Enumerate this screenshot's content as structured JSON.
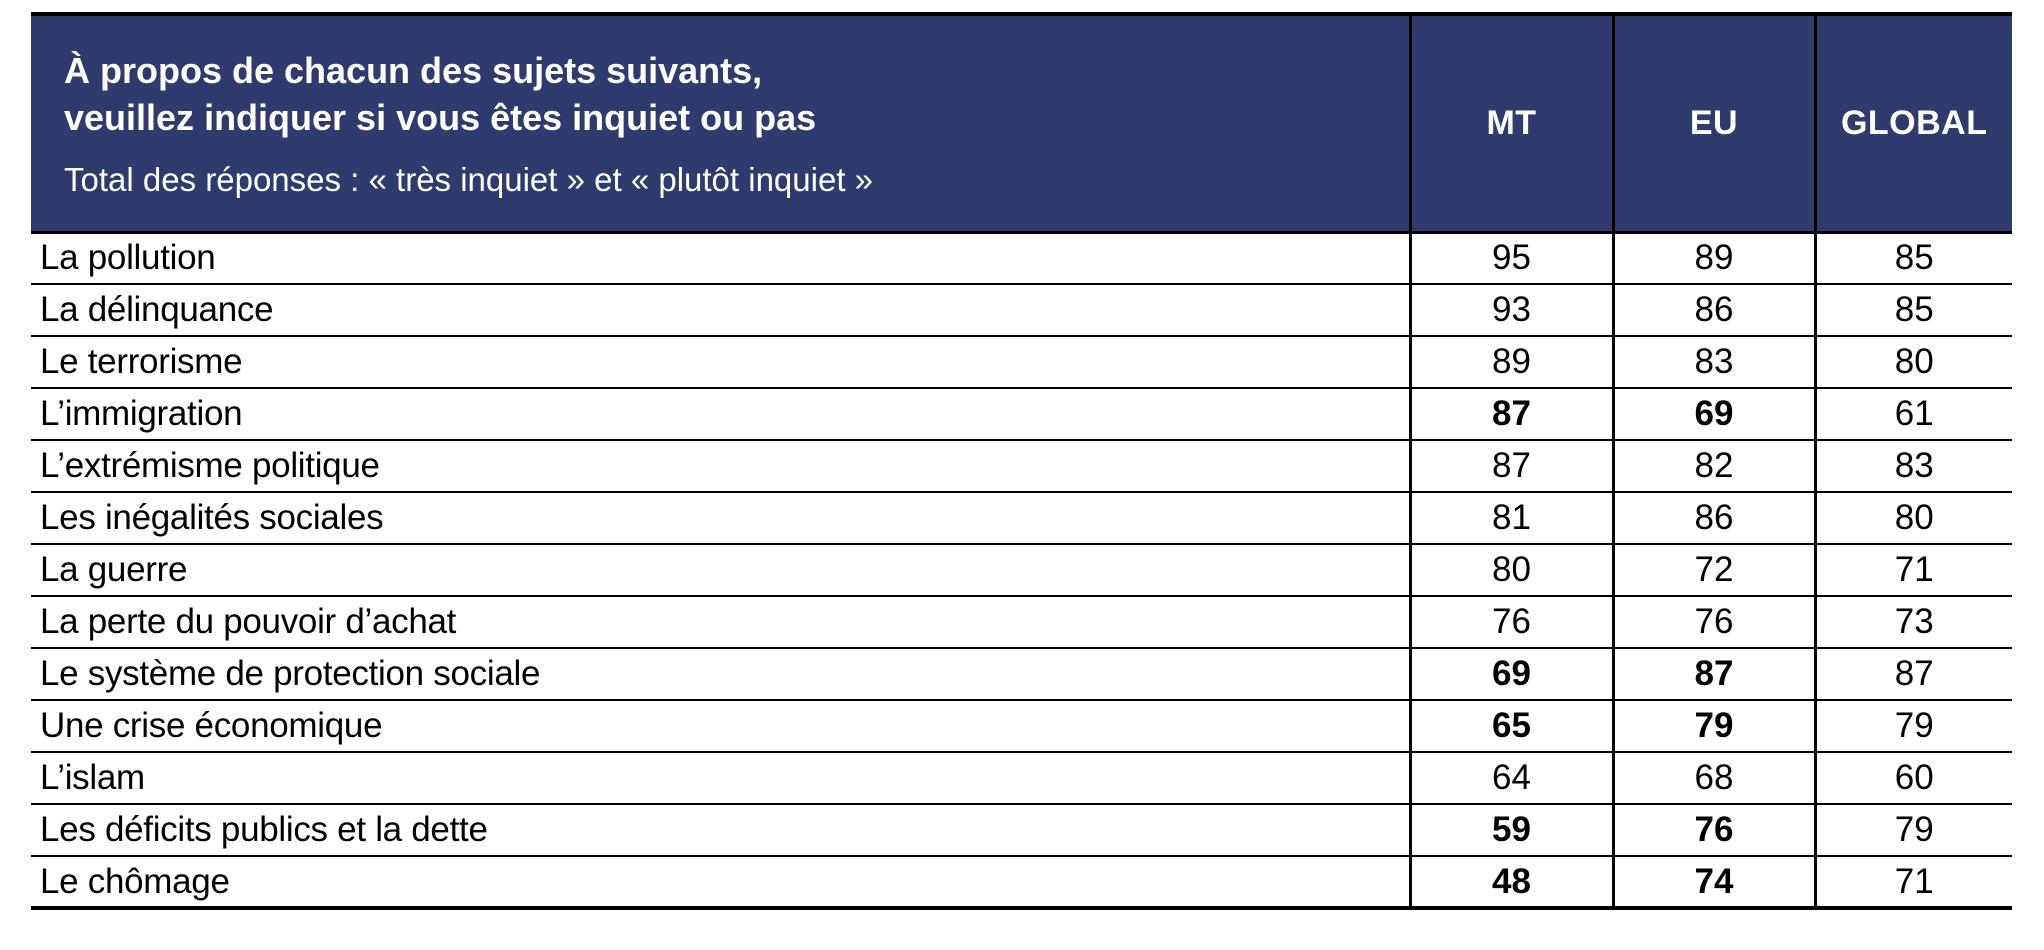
{
  "colors": {
    "header_bg": "#2f3b6d",
    "border": "#000000",
    "header_text": "#ffffff",
    "body_text": "#000000"
  },
  "header": {
    "question_line1": "À propos de chacun des sujets suivants,",
    "question_line2": "veuillez indiquer si vous êtes inquiet ou pas",
    "subtitle": "Total des réponses : « très inquiet » et « plutôt inquiet »",
    "columns": [
      "MT",
      "EU",
      "GLOBAL"
    ]
  },
  "rows": [
    {
      "label": "La pollution",
      "values": [
        95,
        89,
        85
      ],
      "bold": [
        false,
        false,
        false
      ]
    },
    {
      "label": "La délinquance",
      "values": [
        93,
        86,
        85
      ],
      "bold": [
        false,
        false,
        false
      ]
    },
    {
      "label": "Le terrorisme",
      "values": [
        89,
        83,
        80
      ],
      "bold": [
        false,
        false,
        false
      ]
    },
    {
      "label": "L’immigration",
      "values": [
        87,
        69,
        61
      ],
      "bold": [
        true,
        true,
        false
      ]
    },
    {
      "label": "L’extrémisme politique",
      "values": [
        87,
        82,
        83
      ],
      "bold": [
        false,
        false,
        false
      ]
    },
    {
      "label": "Les inégalités sociales",
      "values": [
        81,
        86,
        80
      ],
      "bold": [
        false,
        false,
        false
      ]
    },
    {
      "label": "La guerre",
      "values": [
        80,
        72,
        71
      ],
      "bold": [
        false,
        false,
        false
      ]
    },
    {
      "label": "La perte du pouvoir d’achat",
      "values": [
        76,
        76,
        73
      ],
      "bold": [
        false,
        false,
        false
      ]
    },
    {
      "label": "Le système de protection sociale",
      "values": [
        69,
        87,
        87
      ],
      "bold": [
        true,
        true,
        false
      ]
    },
    {
      "label": "Une crise économique",
      "values": [
        65,
        79,
        79
      ],
      "bold": [
        true,
        true,
        false
      ]
    },
    {
      "label": "L’islam",
      "values": [
        64,
        68,
        60
      ],
      "bold": [
        false,
        false,
        false
      ]
    },
    {
      "label": "Les déficits publics et la dette",
      "values": [
        59,
        76,
        79
      ],
      "bold": [
        true,
        true,
        false
      ]
    },
    {
      "label": "Le chômage",
      "values": [
        48,
        74,
        71
      ],
      "bold": [
        true,
        true,
        false
      ]
    }
  ],
  "chart_data": {
    "type": "table",
    "title": "À propos de chacun des sujets suivants, veuillez indiquer si vous êtes inquiet ou pas",
    "subtitle": "Total des réponses : « très inquiet » et « plutôt inquiet »",
    "categories": [
      "La pollution",
      "La délinquance",
      "Le terrorisme",
      "L’immigration",
      "L’extrémisme politique",
      "Les inégalités sociales",
      "La guerre",
      "La perte du pouvoir d’achat",
      "Le système de protection sociale",
      "Une crise économique",
      "L’islam",
      "Les déficits publics et la dette",
      "Le chômage"
    ],
    "series": [
      {
        "name": "MT",
        "values": [
          95,
          93,
          89,
          87,
          87,
          81,
          80,
          76,
          69,
          65,
          64,
          59,
          48
        ]
      },
      {
        "name": "EU",
        "values": [
          89,
          86,
          83,
          69,
          82,
          86,
          72,
          76,
          87,
          79,
          68,
          76,
          74
        ]
      },
      {
        "name": "GLOBAL",
        "values": [
          85,
          85,
          80,
          61,
          83,
          80,
          71,
          73,
          87,
          79,
          60,
          79,
          71
        ]
      }
    ],
    "bold_highlight_rows": [
      "L’immigration",
      "Le système de protection sociale",
      "Une crise économique",
      "Les déficits publics et la dette",
      "Le chômage"
    ]
  }
}
